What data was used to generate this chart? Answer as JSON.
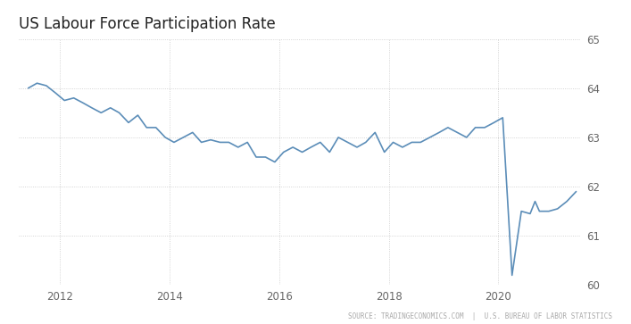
{
  "title": "US Labour Force Participation Rate",
  "source_text": "SOURCE: TRADINGECONOMICS.COM  |  U.S. BUREAU OF LABOR STATISTICS",
  "line_color": "#5b8db8",
  "background_color": "#ffffff",
  "grid_color": "#c8c8c8",
  "ylim": [
    60,
    65
  ],
  "yticks": [
    60,
    61,
    62,
    63,
    64,
    65
  ],
  "xlim": [
    2011.25,
    2021.5
  ],
  "xlabel_years": [
    "2012",
    "2014",
    "2016",
    "2018",
    "2020"
  ],
  "xtick_positions": [
    2012,
    2014,
    2016,
    2018,
    2020
  ],
  "data": [
    [
      2011.42,
      64.0
    ],
    [
      2011.58,
      64.1
    ],
    [
      2011.75,
      64.05
    ],
    [
      2011.92,
      63.9
    ],
    [
      2012.08,
      63.75
    ],
    [
      2012.25,
      63.8
    ],
    [
      2012.42,
      63.7
    ],
    [
      2012.58,
      63.6
    ],
    [
      2012.75,
      63.5
    ],
    [
      2012.92,
      63.6
    ],
    [
      2013.08,
      63.5
    ],
    [
      2013.25,
      63.3
    ],
    [
      2013.42,
      63.45
    ],
    [
      2013.58,
      63.2
    ],
    [
      2013.75,
      63.2
    ],
    [
      2013.92,
      63.0
    ],
    [
      2014.08,
      62.9
    ],
    [
      2014.25,
      63.0
    ],
    [
      2014.42,
      63.1
    ],
    [
      2014.58,
      62.9
    ],
    [
      2014.75,
      62.95
    ],
    [
      2014.92,
      62.9
    ],
    [
      2015.08,
      62.9
    ],
    [
      2015.25,
      62.8
    ],
    [
      2015.42,
      62.9
    ],
    [
      2015.58,
      62.6
    ],
    [
      2015.75,
      62.6
    ],
    [
      2015.92,
      62.5
    ],
    [
      2016.08,
      62.7
    ],
    [
      2016.25,
      62.8
    ],
    [
      2016.42,
      62.7
    ],
    [
      2016.58,
      62.8
    ],
    [
      2016.75,
      62.9
    ],
    [
      2016.92,
      62.7
    ],
    [
      2017.08,
      63.0
    ],
    [
      2017.25,
      62.9
    ],
    [
      2017.42,
      62.8
    ],
    [
      2017.58,
      62.9
    ],
    [
      2017.75,
      63.1
    ],
    [
      2017.92,
      62.7
    ],
    [
      2018.08,
      62.9
    ],
    [
      2018.25,
      62.8
    ],
    [
      2018.42,
      62.9
    ],
    [
      2018.58,
      62.9
    ],
    [
      2018.75,
      63.0
    ],
    [
      2018.92,
      63.1
    ],
    [
      2019.08,
      63.2
    ],
    [
      2019.25,
      63.1
    ],
    [
      2019.42,
      63.0
    ],
    [
      2019.58,
      63.2
    ],
    [
      2019.75,
      63.2
    ],
    [
      2019.92,
      63.3
    ],
    [
      2020.08,
      63.4
    ],
    [
      2020.25,
      60.2
    ],
    [
      2020.42,
      61.5
    ],
    [
      2020.58,
      61.45
    ],
    [
      2020.67,
      61.7
    ],
    [
      2020.75,
      61.5
    ],
    [
      2020.92,
      61.5
    ],
    [
      2021.08,
      61.55
    ],
    [
      2021.25,
      61.7
    ],
    [
      2021.42,
      61.9
    ]
  ]
}
